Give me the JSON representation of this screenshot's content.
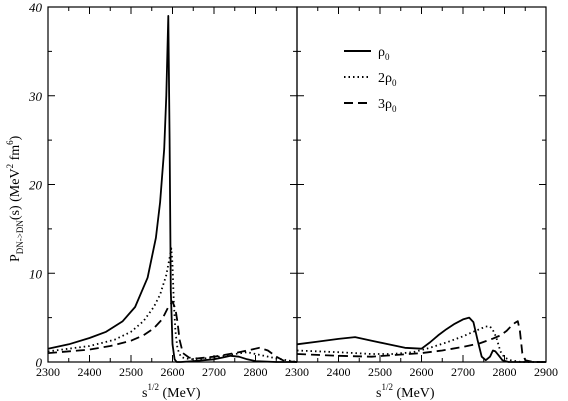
{
  "chart_data": [
    {
      "type": "line",
      "panel": "left",
      "xlabel_base": "s",
      "xlabel_sup": "1/2",
      "xlabel_unit": " (MeV)",
      "ylabel": {
        "p": "P",
        "sub": "DN->DN",
        "mid": "(s) (MeV",
        "sup1": "2",
        "mid2": " fm",
        "sup2": "6",
        "end": ")"
      },
      "xlim": [
        2300,
        2900
      ],
      "ylim": [
        0,
        40
      ],
      "x_ticks": [
        "2300",
        "2400",
        "2500",
        "2600",
        "2700",
        "2800"
      ],
      "y_ticks": [
        "0",
        "10",
        "20",
        "30",
        "40"
      ],
      "series": [
        {
          "name": "ρ0",
          "style": "solid",
          "x": [
            2300,
            2350,
            2400,
            2440,
            2480,
            2510,
            2540,
            2560,
            2570,
            2580,
            2585,
            2590,
            2593,
            2596,
            2600,
            2605,
            2610,
            2620,
            2650,
            2700,
            2720,
            2740,
            2760,
            2780,
            2800,
            2850,
            2900
          ],
          "y": [
            1.5,
            2.0,
            2.7,
            3.4,
            4.6,
            6.2,
            9.5,
            14.0,
            18.0,
            24.0,
            30.0,
            39.0,
            25.0,
            8.0,
            2.0,
            0.3,
            0.0,
            0.0,
            0.1,
            0.3,
            0.5,
            0.7,
            0.6,
            0.3,
            0.1,
            0.0,
            0.0
          ]
        },
        {
          "name": "2ρ0",
          "style": "dotted",
          "x": [
            2300,
            2400,
            2460,
            2500,
            2530,
            2555,
            2570,
            2585,
            2592,
            2597,
            2600,
            2603,
            2607,
            2612,
            2620,
            2630,
            2650,
            2700,
            2750,
            2780,
            2800,
            2850,
            2900
          ],
          "y": [
            1.2,
            1.8,
            2.5,
            3.4,
            4.6,
            6.2,
            7.6,
            9.8,
            11.5,
            12.8,
            11.0,
            7.0,
            3.5,
            1.5,
            0.6,
            0.4,
            0.3,
            0.5,
            0.9,
            1.1,
            0.9,
            0.4,
            0.0
          ]
        },
        {
          "name": "3ρ0",
          "style": "dashed",
          "x": [
            2300,
            2400,
            2450,
            2500,
            2530,
            2555,
            2575,
            2590,
            2600,
            2607,
            2612,
            2617,
            2625,
            2640,
            2660,
            2700,
            2750,
            2790,
            2810,
            2830,
            2850,
            2870,
            2900
          ],
          "y": [
            1.0,
            1.4,
            1.8,
            2.4,
            3.0,
            3.8,
            4.8,
            6.2,
            6.8,
            6.0,
            4.5,
            2.5,
            1.0,
            0.5,
            0.4,
            0.6,
            1.0,
            1.4,
            1.6,
            1.3,
            0.6,
            0.1,
            0.0
          ]
        }
      ]
    },
    {
      "type": "line",
      "panel": "right",
      "xlabel_base": "s",
      "xlabel_sup": "1/2",
      "xlabel_unit": " (MeV)",
      "xlim": [
        2300,
        2900
      ],
      "ylim": [
        0,
        40
      ],
      "x_ticks": [
        "2300",
        "2400",
        "2500",
        "2600",
        "2700",
        "2800",
        "2900"
      ],
      "legend": {
        "placement": "top-center",
        "items": [
          {
            "base": "ρ",
            "sub": "0",
            "style": "solid"
          },
          {
            "base": "2ρ",
            "sub": "0",
            "style": "dotted"
          },
          {
            "base": "3ρ",
            "sub": "0",
            "style": "dashed"
          }
        ]
      },
      "series": [
        {
          "name": "ρ0",
          "style": "solid",
          "x": [
            2300,
            2350,
            2400,
            2440,
            2480,
            2520,
            2560,
            2600,
            2620,
            2640,
            2660,
            2680,
            2700,
            2715,
            2725,
            2735,
            2745,
            2755,
            2765,
            2772,
            2778,
            2785,
            2795,
            2810,
            2850,
            2900
          ],
          "y": [
            2.0,
            2.3,
            2.6,
            2.8,
            2.4,
            2.0,
            1.6,
            1.5,
            2.2,
            3.0,
            3.7,
            4.3,
            4.8,
            5.0,
            4.5,
            2.5,
            0.6,
            0.2,
            0.6,
            1.3,
            1.2,
            0.8,
            0.2,
            0.0,
            0.0,
            0.0
          ]
        },
        {
          "name": "2ρ0",
          "style": "dotted",
          "x": [
            2300,
            2400,
            2480,
            2530,
            2580,
            2620,
            2660,
            2700,
            2730,
            2755,
            2765,
            2772,
            2780,
            2790,
            2800,
            2815,
            2840,
            2900
          ],
          "y": [
            1.3,
            1.1,
            0.9,
            0.9,
            1.1,
            1.6,
            2.2,
            2.9,
            3.5,
            4.0,
            4.0,
            3.6,
            2.8,
            1.2,
            0.5,
            0.2,
            0.0,
            0.0
          ]
        },
        {
          "name": "3ρ0",
          "style": "dashed",
          "x": [
            2300,
            2400,
            2480,
            2540,
            2600,
            2650,
            2700,
            2740,
            2770,
            2790,
            2805,
            2815,
            2825,
            2832,
            2837,
            2843,
            2850,
            2870,
            2900
          ],
          "y": [
            0.9,
            0.7,
            0.6,
            0.8,
            1.0,
            1.3,
            1.7,
            2.1,
            2.6,
            3.0,
            3.5,
            4.0,
            4.4,
            4.6,
            3.5,
            1.0,
            0.2,
            0.0,
            0.0
          ]
        }
      ]
    }
  ]
}
